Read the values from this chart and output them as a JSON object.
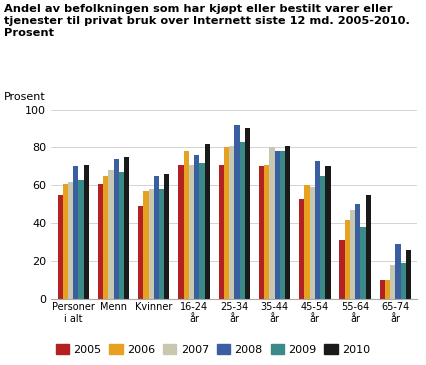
{
  "title_line1": "Andel av befolkningen som har kjøpt eller bestilt varer eller",
  "title_line2": "tjenester til privat bruk over Internett siste 12 md. 2005-2010.",
  "title_line3": "Prosent",
  "ylabel": "Prosent",
  "categories": [
    "Personer\ni alt",
    "Menn",
    "Kvinner",
    "16-24\når",
    "25-34\når",
    "35-44\når",
    "45-54\når",
    "55-64\når",
    "65-74\når"
  ],
  "years": [
    "2005",
    "2006",
    "2007",
    "2008",
    "2009",
    "2010"
  ],
  "colors": [
    "#b22222",
    "#e8a020",
    "#c8c8b0",
    "#3a5fa0",
    "#3a8a8a",
    "#1a1a1a"
  ],
  "data": {
    "2005": [
      55,
      61,
      49,
      71,
      71,
      70,
      53,
      31,
      10
    ],
    "2006": [
      61,
      65,
      57,
      78,
      80,
      71,
      60,
      42,
      10
    ],
    "2007": [
      62,
      68,
      58,
      71,
      81,
      80,
      59,
      47,
      18
    ],
    "2008": [
      70,
      74,
      65,
      76,
      92,
      78,
      73,
      50,
      29
    ],
    "2009": [
      63,
      67,
      58,
      72,
      83,
      78,
      65,
      38,
      19
    ],
    "2010": [
      71,
      75,
      66,
      82,
      90,
      81,
      70,
      55,
      26
    ]
  },
  "ylim": [
    0,
    100
  ],
  "yticks": [
    0,
    20,
    40,
    60,
    80,
    100
  ]
}
